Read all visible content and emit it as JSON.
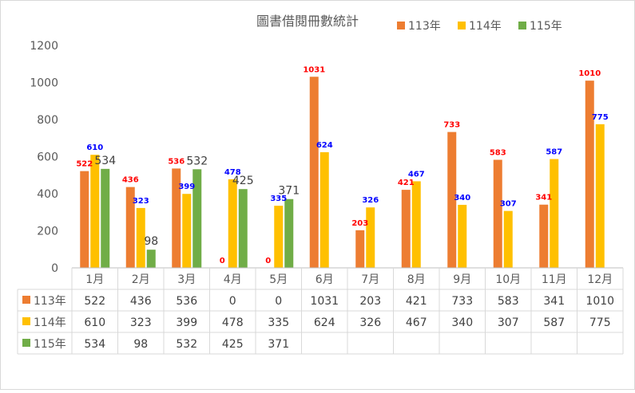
{
  "chart_data": {
    "type": "bar",
    "title": "圖書借閱冊數統計",
    "categories": [
      "1月",
      "2月",
      "3月",
      "4月",
      "5月",
      "6月",
      "7月",
      "8月",
      "9月",
      "10月",
      "11月",
      "12月"
    ],
    "series": [
      {
        "name": "113年",
        "color": "#ED7D31",
        "label_color": "#FF0000",
        "label_bold": true,
        "values": [
          522,
          436,
          536,
          0,
          0,
          1031,
          203,
          421,
          733,
          583,
          341,
          1010
        ],
        "table_values": [
          "522",
          "436",
          "536",
          "0",
          "0",
          "1031",
          "203",
          "421",
          "733",
          "583",
          "341",
          "1010"
        ]
      },
      {
        "name": "114年",
        "color": "#FFC000",
        "label_color": "#0000FF",
        "label_bold": true,
        "values": [
          610,
          323,
          399,
          478,
          335,
          624,
          326,
          467,
          340,
          307,
          587,
          775
        ],
        "table_values": [
          "610",
          "323",
          "399",
          "478",
          "335",
          "624",
          "326",
          "467",
          "340",
          "307",
          "587",
          "775"
        ]
      },
      {
        "name": "115年",
        "color": "#70AD47",
        "label_color": "#404040",
        "label_bold": false,
        "values": [
          534,
          98,
          532,
          425,
          371,
          null,
          null,
          null,
          null,
          null,
          null,
          null
        ],
        "table_values": [
          "534",
          "98",
          "532",
          "425",
          "371",
          "",
          "",
          "",
          "",
          "",
          "",
          ""
        ]
      }
    ],
    "y_ticks": [
      "0",
      "200",
      "400",
      "600",
      "800",
      "1000",
      "1200"
    ],
    "ylim": [
      0,
      1200
    ],
    "grid": false,
    "legend": "top-right",
    "data_table": true
  }
}
